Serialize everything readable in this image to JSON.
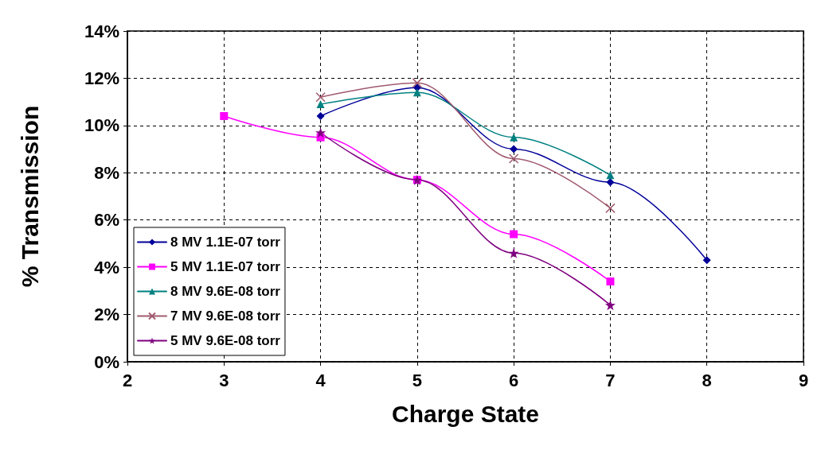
{
  "chart_data": {
    "type": "line",
    "xlabel": "Charge State",
    "ylabel": "% Transmission",
    "xlim": [
      2,
      9
    ],
    "xticks": [
      2,
      3,
      4,
      5,
      6,
      7,
      8,
      9
    ],
    "ylim": [
      0,
      14
    ],
    "yticks": [
      {
        "value": 0,
        "label": "0%"
      },
      {
        "value": 2,
        "label": "2%"
      },
      {
        "value": 4,
        "label": "4%"
      },
      {
        "value": 6,
        "label": "6%"
      },
      {
        "value": 8,
        "label": "8%"
      },
      {
        "value": 10,
        "label": "10%"
      },
      {
        "value": 12,
        "label": "12%"
      },
      {
        "value": 14,
        "label": "14%"
      }
    ],
    "grid": true,
    "legend": "bottom left",
    "line_style": "solid",
    "series": [
      {
        "name": "8 MV 1.1E-07 torr",
        "color": "#000099",
        "marker": "diamond",
        "x": [
          4,
          5,
          6,
          7,
          8
        ],
        "values": [
          10.4,
          11.6,
          9.0,
          7.6,
          4.3
        ]
      },
      {
        "name": "5 MV 1.1E-07 torr",
        "color": "#ff00ff",
        "marker": "square",
        "x": [
          3,
          4,
          5,
          6,
          7
        ],
        "values": [
          10.4,
          9.5,
          7.7,
          5.4,
          3.4
        ]
      },
      {
        "name": "8 MV 9.6E-08 torr",
        "color": "#008080",
        "marker": "triangle",
        "x": [
          4,
          5,
          6,
          7
        ],
        "values": [
          10.9,
          11.4,
          9.5,
          7.9
        ]
      },
      {
        "name": "7 MV 9.6E-08 torr",
        "color": "#a05a6e",
        "marker": "cross",
        "x": [
          4,
          5,
          6,
          7
        ],
        "values": [
          11.2,
          11.8,
          8.6,
          6.5
        ]
      },
      {
        "name": "5 MV 9.6E-08 torr",
        "color": "#800080",
        "marker": "star",
        "x": [
          4,
          5,
          6,
          7
        ],
        "values": [
          9.7,
          7.7,
          4.6,
          2.4
        ]
      }
    ]
  }
}
